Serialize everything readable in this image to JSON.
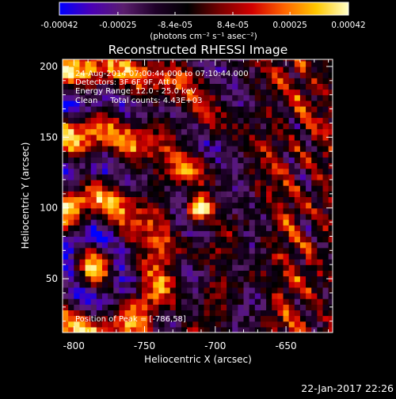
{
  "chart_data": {
    "type": "heatmap",
    "title": "Reconstructed RHESSI Image",
    "xlabel": "Heliocentric X (arcsec)",
    "ylabel": "Heliocentric Y (arcsec)",
    "xlim": [
      -808,
      -617
    ],
    "ylim": [
      12,
      205
    ],
    "x_ticks": [
      -800,
      -750,
      -700,
      -650
    ],
    "y_ticks": [
      50,
      100,
      150,
      200
    ],
    "colorbar": {
      "range": [
        -0.00042,
        0.00042
      ],
      "tick_values": [
        -0.00042,
        -0.00025,
        -8.4e-05,
        8.4e-05,
        0.00025,
        0.00042
      ],
      "tick_labels": [
        "-0.00042",
        "-0.00025",
        "-8.4e-05",
        "8.4e-05",
        "0.00025",
        "0.00042"
      ],
      "unit_label": "(photons cm⁻² s⁻¹ asec⁻²)",
      "colormap": [
        "#0000ff",
        "#4b00b4",
        "#5a1e6e",
        "#1e0028",
        "#000000",
        "#780000",
        "#d20000",
        "#ff6400",
        "#ffc800",
        "#ffffc8"
      ]
    },
    "annotations": {
      "time": "24-Aug-2014 07:00:44.000 to 07:10:44.000",
      "detectors": "Detectors: 3F 6F 9F, Att 0",
      "energy": "Energy Range: 12.0 - 25.0 keV",
      "clean": "Clean     Total counts: 4.43E+03",
      "peak": "Position of Peak = [-786,58]"
    },
    "peak_position": [
      -786,
      58
    ],
    "grid": false
  },
  "footer": {
    "timestamp": "22-Jan-2017 22:26"
  }
}
